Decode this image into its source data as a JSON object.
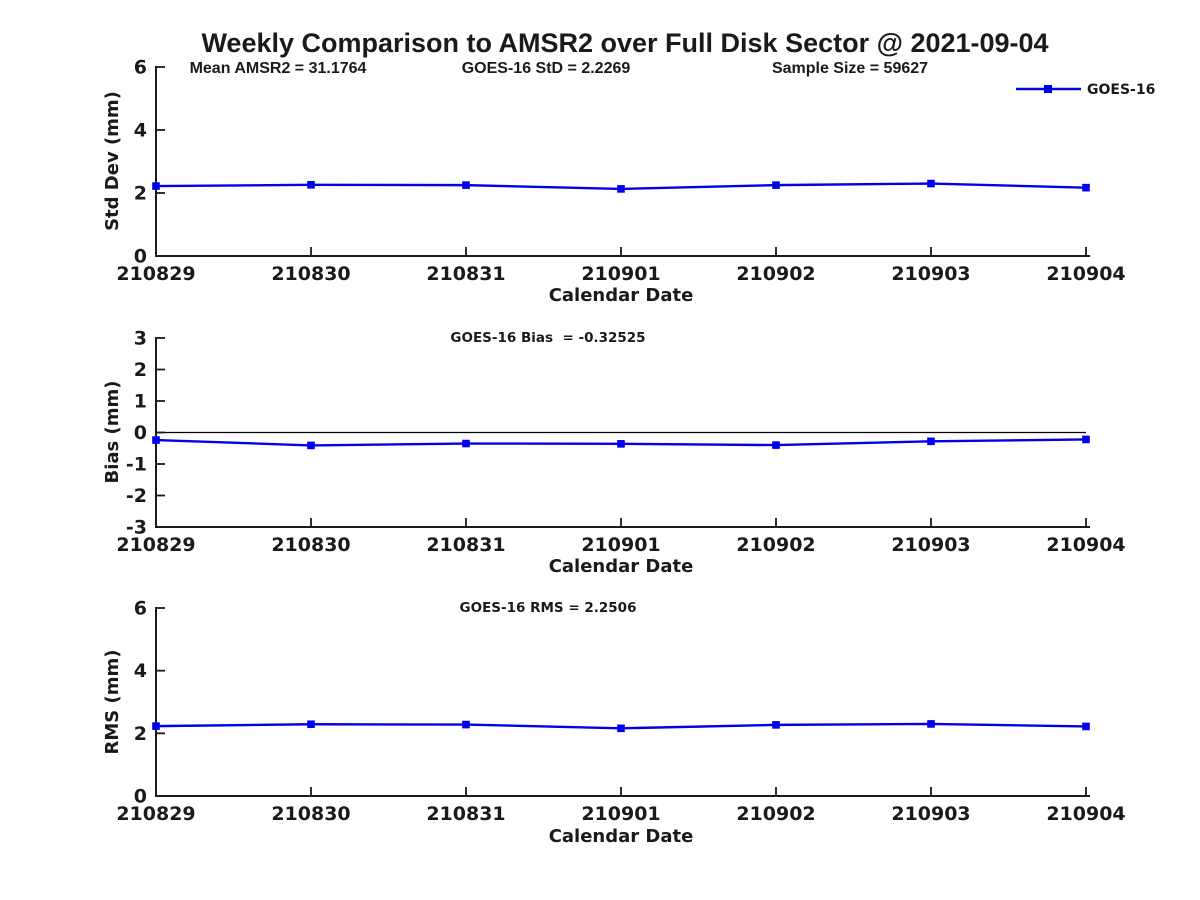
{
  "title": "Weekly Comparison to AMSR2 over Full Disk Sector @ 2021-09-04",
  "colors": {
    "series": "#0000ee",
    "axis": "#1a1a1a",
    "zero_line": "#000000",
    "background": "#ffffff"
  },
  "chart_data": [
    {
      "type": "line",
      "panel": "std-dev",
      "annotations": [
        "Mean AMSR2 = 31.1764",
        "GOES-16 StD = 2.2269",
        "Sample Size = 59627"
      ],
      "legend_label": "GOES-16",
      "legend_position": "top-right-outside",
      "categories": [
        "210829",
        "210830",
        "210831",
        "210901",
        "210902",
        "210903",
        "210904"
      ],
      "values": [
        2.22,
        2.26,
        2.25,
        2.13,
        2.25,
        2.3,
        2.17
      ],
      "xlabel": "Calendar Date",
      "ylabel": "Std Dev (mm)",
      "ylim": [
        0,
        6
      ],
      "yticks": [
        0,
        2,
        4,
        6
      ],
      "grid": false,
      "marker": "square"
    },
    {
      "type": "line",
      "panel": "bias",
      "title": "GOES-16 Bias  = -0.32525",
      "categories": [
        "210829",
        "210830",
        "210831",
        "210901",
        "210902",
        "210903",
        "210904"
      ],
      "values": [
        -0.24,
        -0.41,
        -0.35,
        -0.36,
        -0.4,
        -0.28,
        -0.22
      ],
      "xlabel": "Calendar Date",
      "ylabel": "Bias (mm)",
      "ylim": [
        -3,
        3
      ],
      "yticks": [
        -3,
        -2,
        -1,
        0,
        1,
        2,
        3
      ],
      "zero_line": true,
      "grid": false,
      "marker": "square"
    },
    {
      "type": "line",
      "panel": "rms",
      "title": "GOES-16 RMS = 2.2506",
      "categories": [
        "210829",
        "210830",
        "210831",
        "210901",
        "210902",
        "210903",
        "210904"
      ],
      "values": [
        2.23,
        2.29,
        2.28,
        2.16,
        2.27,
        2.3,
        2.22
      ],
      "xlabel": "Calendar Date",
      "ylabel": "RMS (mm)",
      "ylim": [
        0,
        6
      ],
      "yticks": [
        0,
        2,
        4,
        6
      ],
      "grid": false,
      "marker": "square"
    }
  ]
}
